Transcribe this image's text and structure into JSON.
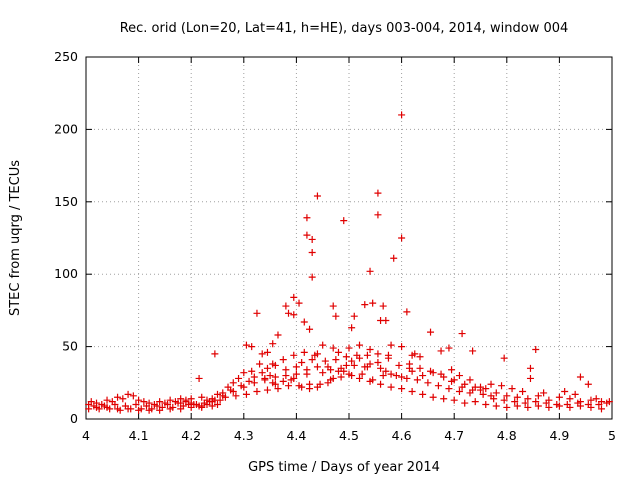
{
  "chart_data": {
    "type": "scatter",
    "title": "Rec. orid (Lon=20, Lat=41, h=HE), days 003-004, 2014, window 004",
    "xlabel": "GPS time / Days of year 2014",
    "ylabel": "STEC from uqrg / TECUs",
    "xlim": [
      4,
      5
    ],
    "ylim": [
      0,
      250
    ],
    "x_ticks": [
      4,
      4.1,
      4.2,
      4.3,
      4.4,
      4.5,
      4.6,
      4.7,
      4.8,
      4.9,
      5
    ],
    "x_tick_labels": [
      "4",
      "4.1",
      "4.2",
      "4.3",
      "4.4",
      "4.5",
      "4.6",
      "4.7",
      "4.8",
      "4.9",
      "5"
    ],
    "y_ticks": [
      0,
      50,
      100,
      150,
      200,
      250
    ],
    "y_tick_labels": [
      "0",
      "50",
      "100",
      "150",
      "200",
      "250"
    ],
    "grid": true,
    "marker": "+",
    "color": "#e00000",
    "series": [
      {
        "name": "STEC",
        "points": [
          [
            4.44,
            154
          ],
          [
            4.49,
            137
          ],
          [
            4.42,
            139
          ],
          [
            4.42,
            127
          ],
          [
            4.43,
            124
          ],
          [
            4.43,
            115
          ],
          [
            4.43,
            98
          ],
          [
            4.555,
            156
          ],
          [
            4.555,
            141
          ],
          [
            4.6,
            210
          ],
          [
            4.6,
            125
          ],
          [
            4.585,
            111
          ],
          [
            4.54,
            102
          ],
          [
            4.395,
            84
          ],
          [
            4.405,
            80
          ],
          [
            4.38,
            78
          ],
          [
            4.325,
            73
          ],
          [
            4.385,
            73
          ],
          [
            4.395,
            72
          ],
          [
            4.47,
            78
          ],
          [
            4.51,
            71
          ],
          [
            4.53,
            79
          ],
          [
            4.545,
            80
          ],
          [
            4.565,
            78
          ],
          [
            4.56,
            68
          ],
          [
            4.61,
            74
          ],
          [
            4.57,
            68
          ],
          [
            4.505,
            63
          ],
          [
            4.475,
            71
          ],
          [
            4.415,
            67
          ],
          [
            4.425,
            62
          ],
          [
            4.365,
            58
          ],
          [
            4.355,
            52
          ],
          [
            4.345,
            46
          ],
          [
            4.335,
            45
          ],
          [
            4.305,
            51
          ],
          [
            4.315,
            50
          ],
          [
            4.245,
            45
          ],
          [
            4.215,
            28
          ],
          [
            4.655,
            60
          ],
          [
            4.715,
            59
          ],
          [
            4.735,
            47
          ],
          [
            4.675,
            47
          ],
          [
            4.69,
            49
          ],
          [
            4.795,
            42
          ],
          [
            4.855,
            48
          ],
          [
            4.845,
            35
          ],
          [
            4.845,
            28
          ],
          [
            4.94,
            29
          ],
          [
            4.955,
            24
          ],
          [
            4.45,
            51
          ],
          [
            4.47,
            49
          ],
          [
            4.48,
            46
          ],
          [
            4.5,
            49
          ],
          [
            4.52,
            51
          ],
          [
            4.54,
            48
          ],
          [
            4.58,
            51
          ],
          [
            4.6,
            50
          ],
          [
            4.62,
            44
          ],
          [
            4.635,
            43
          ],
          [
            4.575,
            42
          ],
          [
            4.555,
            39
          ],
          [
            4.535,
            36
          ],
          [
            4.44,
            45
          ],
          [
            4.43,
            41
          ],
          [
            4.41,
            39
          ],
          [
            4.4,
            36
          ],
          [
            4.38,
            34
          ],
          [
            4.36,
            37
          ],
          [
            4.35,
            30
          ],
          [
            4.36,
            24
          ],
          [
            4.39,
            27
          ],
          [
            4.41,
            22
          ],
          [
            4.425,
            21
          ],
          [
            4.44,
            22
          ],
          [
            4.46,
            25
          ],
          [
            4.47,
            28
          ],
          [
            4.49,
            33
          ],
          [
            4.51,
            37
          ],
          [
            4.53,
            36
          ],
          [
            4.57,
            33
          ],
          [
            4.59,
            30
          ],
          [
            4.61,
            28
          ],
          [
            4.63,
            27
          ],
          [
            4.65,
            25
          ],
          [
            4.67,
            23
          ],
          [
            4.69,
            21
          ],
          [
            4.71,
            19
          ],
          [
            4.73,
            18
          ],
          [
            4.75,
            20
          ],
          [
            4.77,
            16
          ],
          [
            4.33,
            38
          ],
          [
            4.345,
            35
          ],
          [
            4.3,
            32
          ],
          [
            4.29,
            28
          ],
          [
            4.28,
            25
          ],
          [
            4.27,
            22
          ],
          [
            4.26,
            18
          ],
          [
            4.25,
            17
          ],
          [
            4.24,
            14
          ],
          [
            4.23,
            13
          ],
          [
            4.22,
            15
          ],
          [
            4.2,
            14
          ],
          [
            4.19,
            12
          ],
          [
            4.18,
            11
          ],
          [
            4.31,
            26
          ],
          [
            4.32,
            29
          ],
          [
            4.34,
            27
          ],
          [
            4.355,
            25
          ],
          [
            4.375,
            26
          ],
          [
            4.395,
            28
          ],
          [
            4.42,
            31
          ],
          [
            4.45,
            32
          ],
          [
            4.465,
            34
          ],
          [
            4.485,
            35
          ],
          [
            4.495,
            37
          ],
          [
            4.505,
            40
          ],
          [
            4.52,
            42
          ],
          [
            4.54,
            38
          ],
          [
            4.56,
            35
          ],
          [
            4.58,
            31
          ],
          [
            4.6,
            29
          ],
          [
            4.62,
            33
          ],
          [
            4.64,
            30
          ],
          [
            4.66,
            32
          ],
          [
            4.68,
            29
          ],
          [
            4.7,
            27
          ],
          [
            4.72,
            24
          ],
          [
            4.74,
            22
          ],
          [
            4.76,
            21
          ],
          [
            4.78,
            18
          ],
          [
            4.8,
            16
          ],
          [
            4.82,
            15
          ],
          [
            4.84,
            14
          ],
          [
            4.86,
            16
          ],
          [
            4.88,
            13
          ],
          [
            4.9,
            15
          ],
          [
            4.92,
            14
          ],
          [
            4.94,
            12
          ],
          [
            4.96,
            13
          ],
          [
            4.98,
            12
          ],
          [
            4.99,
            11
          ],
          [
            4.97,
            14
          ],
          [
            4.93,
            17
          ],
          [
            4.91,
            19
          ],
          [
            4.87,
            18
          ],
          [
            4.83,
            19
          ],
          [
            4.81,
            21
          ],
          [
            4.79,
            23
          ],
          [
            4.77,
            24
          ],
          [
            4.75,
            22
          ],
          [
            4.73,
            27
          ],
          [
            4.71,
            30
          ],
          [
            4.695,
            34
          ],
          [
            4.615,
            38
          ],
          [
            4.625,
            45
          ],
          [
            4.565,
            30
          ],
          [
            4.545,
            27
          ],
          [
            4.525,
            31
          ],
          [
            4.505,
            30
          ],
          [
            4.485,
            29
          ],
          [
            4.465,
            27
          ],
          [
            4.445,
            24
          ],
          [
            4.425,
            24
          ],
          [
            4.405,
            23
          ],
          [
            4.385,
            23
          ],
          [
            4.365,
            21
          ],
          [
            4.345,
            20
          ],
          [
            4.325,
            19
          ],
          [
            4.305,
            17
          ],
          [
            4.285,
            16
          ],
          [
            4.265,
            15
          ],
          [
            4.245,
            13
          ],
          [
            4.225,
            11
          ],
          [
            4.205,
            10
          ],
          [
            4.185,
            9
          ],
          [
            4.165,
            8
          ],
          [
            4.145,
            8
          ],
          [
            4.125,
            7
          ],
          [
            4.105,
            7
          ],
          [
            4.085,
            7
          ],
          [
            4.065,
            6
          ],
          [
            4.045,
            7
          ],
          [
            4.025,
            7
          ],
          [
            4.005,
            7
          ],
          [
            4.01,
            12
          ],
          [
            4.02,
            11
          ],
          [
            4.03,
            10
          ],
          [
            4.04,
            13
          ],
          [
            4.05,
            12
          ],
          [
            4.06,
            15
          ],
          [
            4.07,
            14
          ],
          [
            4.08,
            17
          ],
          [
            4.09,
            16
          ],
          [
            4.1,
            13
          ],
          [
            4.11,
            12
          ],
          [
            4.12,
            11
          ],
          [
            4.13,
            10
          ],
          [
            4.14,
            12
          ],
          [
            4.15,
            11
          ],
          [
            4.16,
            13
          ],
          [
            4.17,
            12
          ],
          [
            4.18,
            14
          ],
          [
            4.19,
            13
          ],
          [
            4.2,
            11
          ],
          [
            4.21,
            10
          ],
          [
            4.22,
            9
          ],
          [
            4.23,
            10
          ],
          [
            4.24,
            9
          ],
          [
            4.25,
            10
          ],
          [
            4.005,
            10
          ],
          [
            4.015,
            9
          ],
          [
            4.035,
            9
          ],
          [
            4.055,
            10
          ],
          [
            4.075,
            9
          ],
          [
            4.095,
            10
          ],
          [
            4.115,
            9
          ],
          [
            4.135,
            9
          ],
          [
            4.155,
            10
          ],
          [
            4.175,
            11
          ],
          [
            4.195,
            10
          ],
          [
            4.215,
            9
          ],
          [
            4.235,
            12
          ],
          [
            4.255,
            13
          ],
          [
            4.275,
            20
          ],
          [
            4.295,
            23
          ],
          [
            4.315,
            33
          ],
          [
            4.335,
            32
          ],
          [
            4.355,
            38
          ],
          [
            4.375,
            41
          ],
          [
            4.395,
            44
          ],
          [
            4.415,
            46
          ],
          [
            4.435,
            44
          ],
          [
            4.455,
            40
          ],
          [
            4.475,
            41
          ],
          [
            4.495,
            43
          ],
          [
            4.515,
            44
          ],
          [
            4.535,
            44
          ],
          [
            4.555,
            45
          ],
          [
            4.575,
            44
          ],
          [
            4.595,
            37
          ],
          [
            4.615,
            35
          ],
          [
            4.635,
            35
          ],
          [
            4.655,
            33
          ],
          [
            4.675,
            31
          ],
          [
            4.695,
            26
          ],
          [
            4.715,
            22
          ],
          [
            4.735,
            20
          ],
          [
            4.755,
            17
          ],
          [
            4.775,
            14
          ],
          [
            4.795,
            13
          ],
          [
            4.815,
            12
          ],
          [
            4.835,
            11
          ],
          [
            4.855,
            12
          ],
          [
            4.875,
            11
          ],
          [
            4.895,
            10
          ],
          [
            4.915,
            10
          ],
          [
            4.935,
            11
          ],
          [
            4.955,
            10
          ],
          [
            4.975,
            10
          ],
          [
            4.995,
            12
          ],
          [
            4.72,
            11
          ],
          [
            4.74,
            12
          ],
          [
            4.76,
            10
          ],
          [
            4.78,
            9
          ],
          [
            4.8,
            8
          ],
          [
            4.82,
            9
          ],
          [
            4.84,
            8
          ],
          [
            4.86,
            9
          ],
          [
            4.88,
            8
          ],
          [
            4.9,
            9
          ],
          [
            4.92,
            8
          ],
          [
            4.94,
            9
          ],
          [
            4.96,
            8
          ],
          [
            4.98,
            7
          ],
          [
            4.7,
            13
          ],
          [
            4.68,
            14
          ],
          [
            4.66,
            15
          ],
          [
            4.64,
            17
          ],
          [
            4.62,
            19
          ],
          [
            4.6,
            21
          ],
          [
            4.58,
            22
          ],
          [
            4.56,
            24
          ],
          [
            4.54,
            26
          ],
          [
            4.52,
            28
          ],
          [
            4.5,
            31
          ],
          [
            4.48,
            33
          ],
          [
            4.46,
            36
          ],
          [
            4.44,
            36
          ],
          [
            4.42,
            34
          ],
          [
            4.4,
            31
          ],
          [
            4.38,
            30
          ],
          [
            4.36,
            29
          ],
          [
            4.34,
            28
          ],
          [
            4.32,
            25
          ],
          [
            4.3,
            22
          ],
          [
            4.28,
            19
          ],
          [
            4.26,
            16
          ],
          [
            4.24,
            12
          ],
          [
            4.22,
            8
          ],
          [
            4.2,
            8
          ],
          [
            4.18,
            7
          ],
          [
            4.16,
            7
          ],
          [
            4.14,
            6
          ],
          [
            4.12,
            6
          ],
          [
            4.1,
            6
          ],
          [
            4.08,
            7
          ],
          [
            4.06,
            7
          ],
          [
            4.04,
            8
          ],
          [
            4.02,
            8
          ]
        ]
      }
    ]
  }
}
